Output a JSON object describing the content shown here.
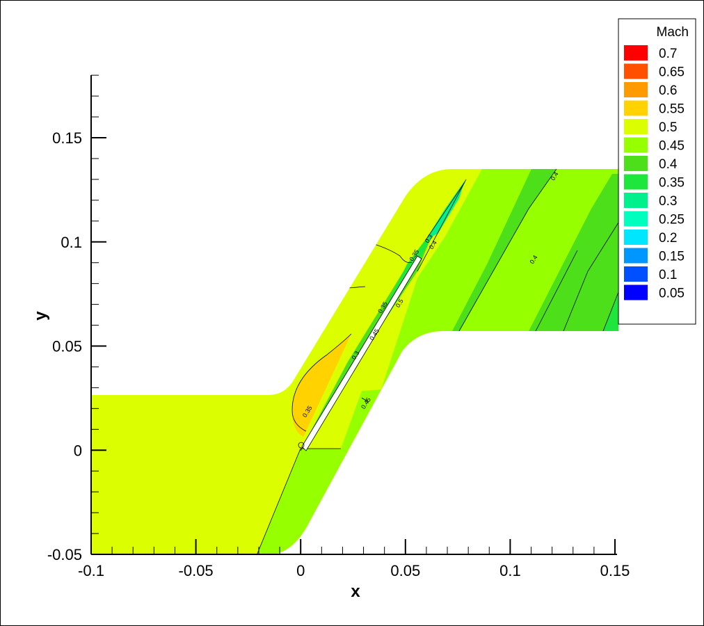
{
  "chart_data": {
    "type": "contour",
    "title": "",
    "xlabel": "x",
    "ylabel": "y",
    "xlim": [
      -0.1,
      0.15
    ],
    "ylim": [
      -0.05,
      0.18
    ],
    "x_ticks": [
      -0.1,
      -0.05,
      0,
      0.05,
      0.1,
      0.15
    ],
    "x_tick_labels": [
      "-0.1",
      "-0.05",
      "0",
      "0.05",
      "0.1",
      "0.15"
    ],
    "y_ticks": [
      -0.05,
      0,
      0.05,
      0.1,
      0.15
    ],
    "y_tick_labels": [
      "-0.05",
      "0",
      "0.05",
      "0.1",
      "0.15"
    ],
    "grid": false,
    "legend": {
      "title": "Mach",
      "placement": "top-right",
      "levels": [
        {
          "value": "0.7",
          "color": "#ff0000"
        },
        {
          "value": "0.65",
          "color": "#ff5000"
        },
        {
          "value": "0.6",
          "color": "#ff9a00"
        },
        {
          "value": "0.55",
          "color": "#ffd200"
        },
        {
          "value": "0.5",
          "color": "#dcff00"
        },
        {
          "value": "0.45",
          "color": "#96ff00"
        },
        {
          "value": "0.4",
          "color": "#4ddf1a"
        },
        {
          "value": "0.35",
          "color": "#1ee63c"
        },
        {
          "value": "0.3",
          "color": "#00f08c"
        },
        {
          "value": "0.25",
          "color": "#00ffbe"
        },
        {
          "value": "0.2",
          "color": "#00e6ff"
        },
        {
          "value": "0.15",
          "color": "#0096ff"
        },
        {
          "value": "0.1",
          "color": "#0050ff"
        },
        {
          "value": "0.05",
          "color": "#0000ff"
        }
      ]
    },
    "contour_labels": [
      {
        "text": "0.4",
        "x": 0.122,
        "y": 0.131
      },
      {
        "text": "0.4",
        "x": 0.112,
        "y": 0.091
      },
      {
        "text": "0.45",
        "x": 0.032,
        "y": 0.022
      },
      {
        "text": "0.35",
        "x": 0.055,
        "y": 0.093
      },
      {
        "text": "0.3",
        "x": 0.062,
        "y": 0.101
      },
      {
        "text": "0.4",
        "x": 0.064,
        "y": 0.098
      },
      {
        "text": "0.5",
        "x": 0.048,
        "y": 0.07
      },
      {
        "text": "0.45",
        "x": 0.036,
        "y": 0.055
      },
      {
        "text": "0.35",
        "x": 0.04,
        "y": 0.068
      },
      {
        "text": "0.3",
        "x": 0.027,
        "y": 0.045
      },
      {
        "text": "0.35",
        "x": 0.004,
        "y": 0.018
      }
    ]
  }
}
